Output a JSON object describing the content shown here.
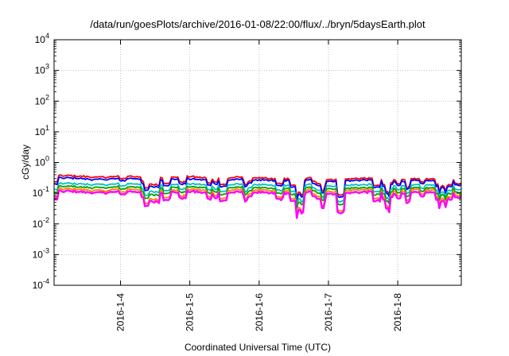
{
  "chart_data": {
    "type": "line",
    "title": "/data/run/goesPlots/archive/2016-01-08/22:00/flux/../bryn/5daysEarth.plot",
    "xlabel": "Coordinated Universal Time (UTC)",
    "ylabel": "cGy/day",
    "yscale": "log",
    "ylim": [
      0.0001,
      10000
    ],
    "y_ticks": [
      {
        "value": 0.0001,
        "base": "10",
        "exp": "-4"
      },
      {
        "value": 0.001,
        "base": "10",
        "exp": "-3"
      },
      {
        "value": 0.01,
        "base": "10",
        "exp": "-2"
      },
      {
        "value": 0.1,
        "base": "10",
        "exp": "-1"
      },
      {
        "value": 1,
        "base": "10",
        "exp": "0"
      },
      {
        "value": 10,
        "base": "10",
        "exp": "1"
      },
      {
        "value": 100,
        "base": "10",
        "exp": "2"
      },
      {
        "value": 1000,
        "base": "10",
        "exp": "3"
      },
      {
        "value": 10000,
        "base": "10",
        "exp": "4"
      }
    ],
    "xlim": [
      "2016-01-03 01:00",
      "2016-01-08 22:00"
    ],
    "x_ticks": [
      {
        "date": "2016-01-04",
        "label": "2016-1-4"
      },
      {
        "date": "2016-01-05",
        "label": "2016-1-5"
      },
      {
        "date": "2016-01-06",
        "label": "2016-1-6"
      },
      {
        "date": "2016-01-07",
        "label": "2016-1-7"
      },
      {
        "date": "2016-01-08",
        "label": "2016-1-8"
      }
    ],
    "grid": true,
    "legend": "none",
    "series": [
      {
        "color": "#ff0000",
        "start": 0.36,
        "end": 0.27
      },
      {
        "color": "#0000ff",
        "start": 0.3,
        "end": 0.24
      },
      {
        "color": "#00c0c0",
        "start": 0.2,
        "end": 0.175
      },
      {
        "color": "#00a000",
        "start": 0.16,
        "end": 0.14
      },
      {
        "color": "#ff8000",
        "start": 0.13,
        "end": 0.12
      },
      {
        "color": "#ff00ff",
        "start": 0.11,
        "end": 0.1
      }
    ]
  }
}
